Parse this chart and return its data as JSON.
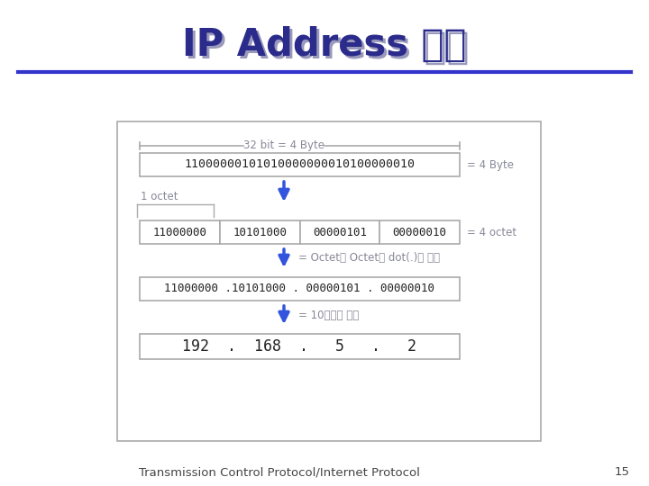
{
  "title_en": "IP Address ",
  "title_ko": "표기",
  "title_color": "#2B2B8C",
  "title_shadow_color": "#9999BB",
  "underline_color": "#3333CC",
  "footer_text": "Transmission Control Protocol/Internet Protocol",
  "footer_page": "15",
  "bg_color": "#FFFFFF",
  "box_edge_color": "#999999",
  "arrow_color": "#3355DD",
  "text_color": "#222222",
  "label_color": "#888899",
  "row1_label": "32 bit = 4 Byte",
  "row1_binary": "11000000101010000000010100000010",
  "row1_right_label": "= 4 Byte",
  "row2_left_label": "1 octet",
  "row2_boxes": [
    "11000000",
    "10101000",
    "00000101",
    "00000010"
  ],
  "row2_right_label": "= 4 octet",
  "row3_arrow_label": "= Octet와 Octet를 dot(.)_로 구분",
  "row3_binary": "11000000 .10101000 . 00000101 . 00000010",
  "row4_arrow_label": "= 10진수로 표기",
  "row4_values": "192  .  168  .   5   .   2"
}
